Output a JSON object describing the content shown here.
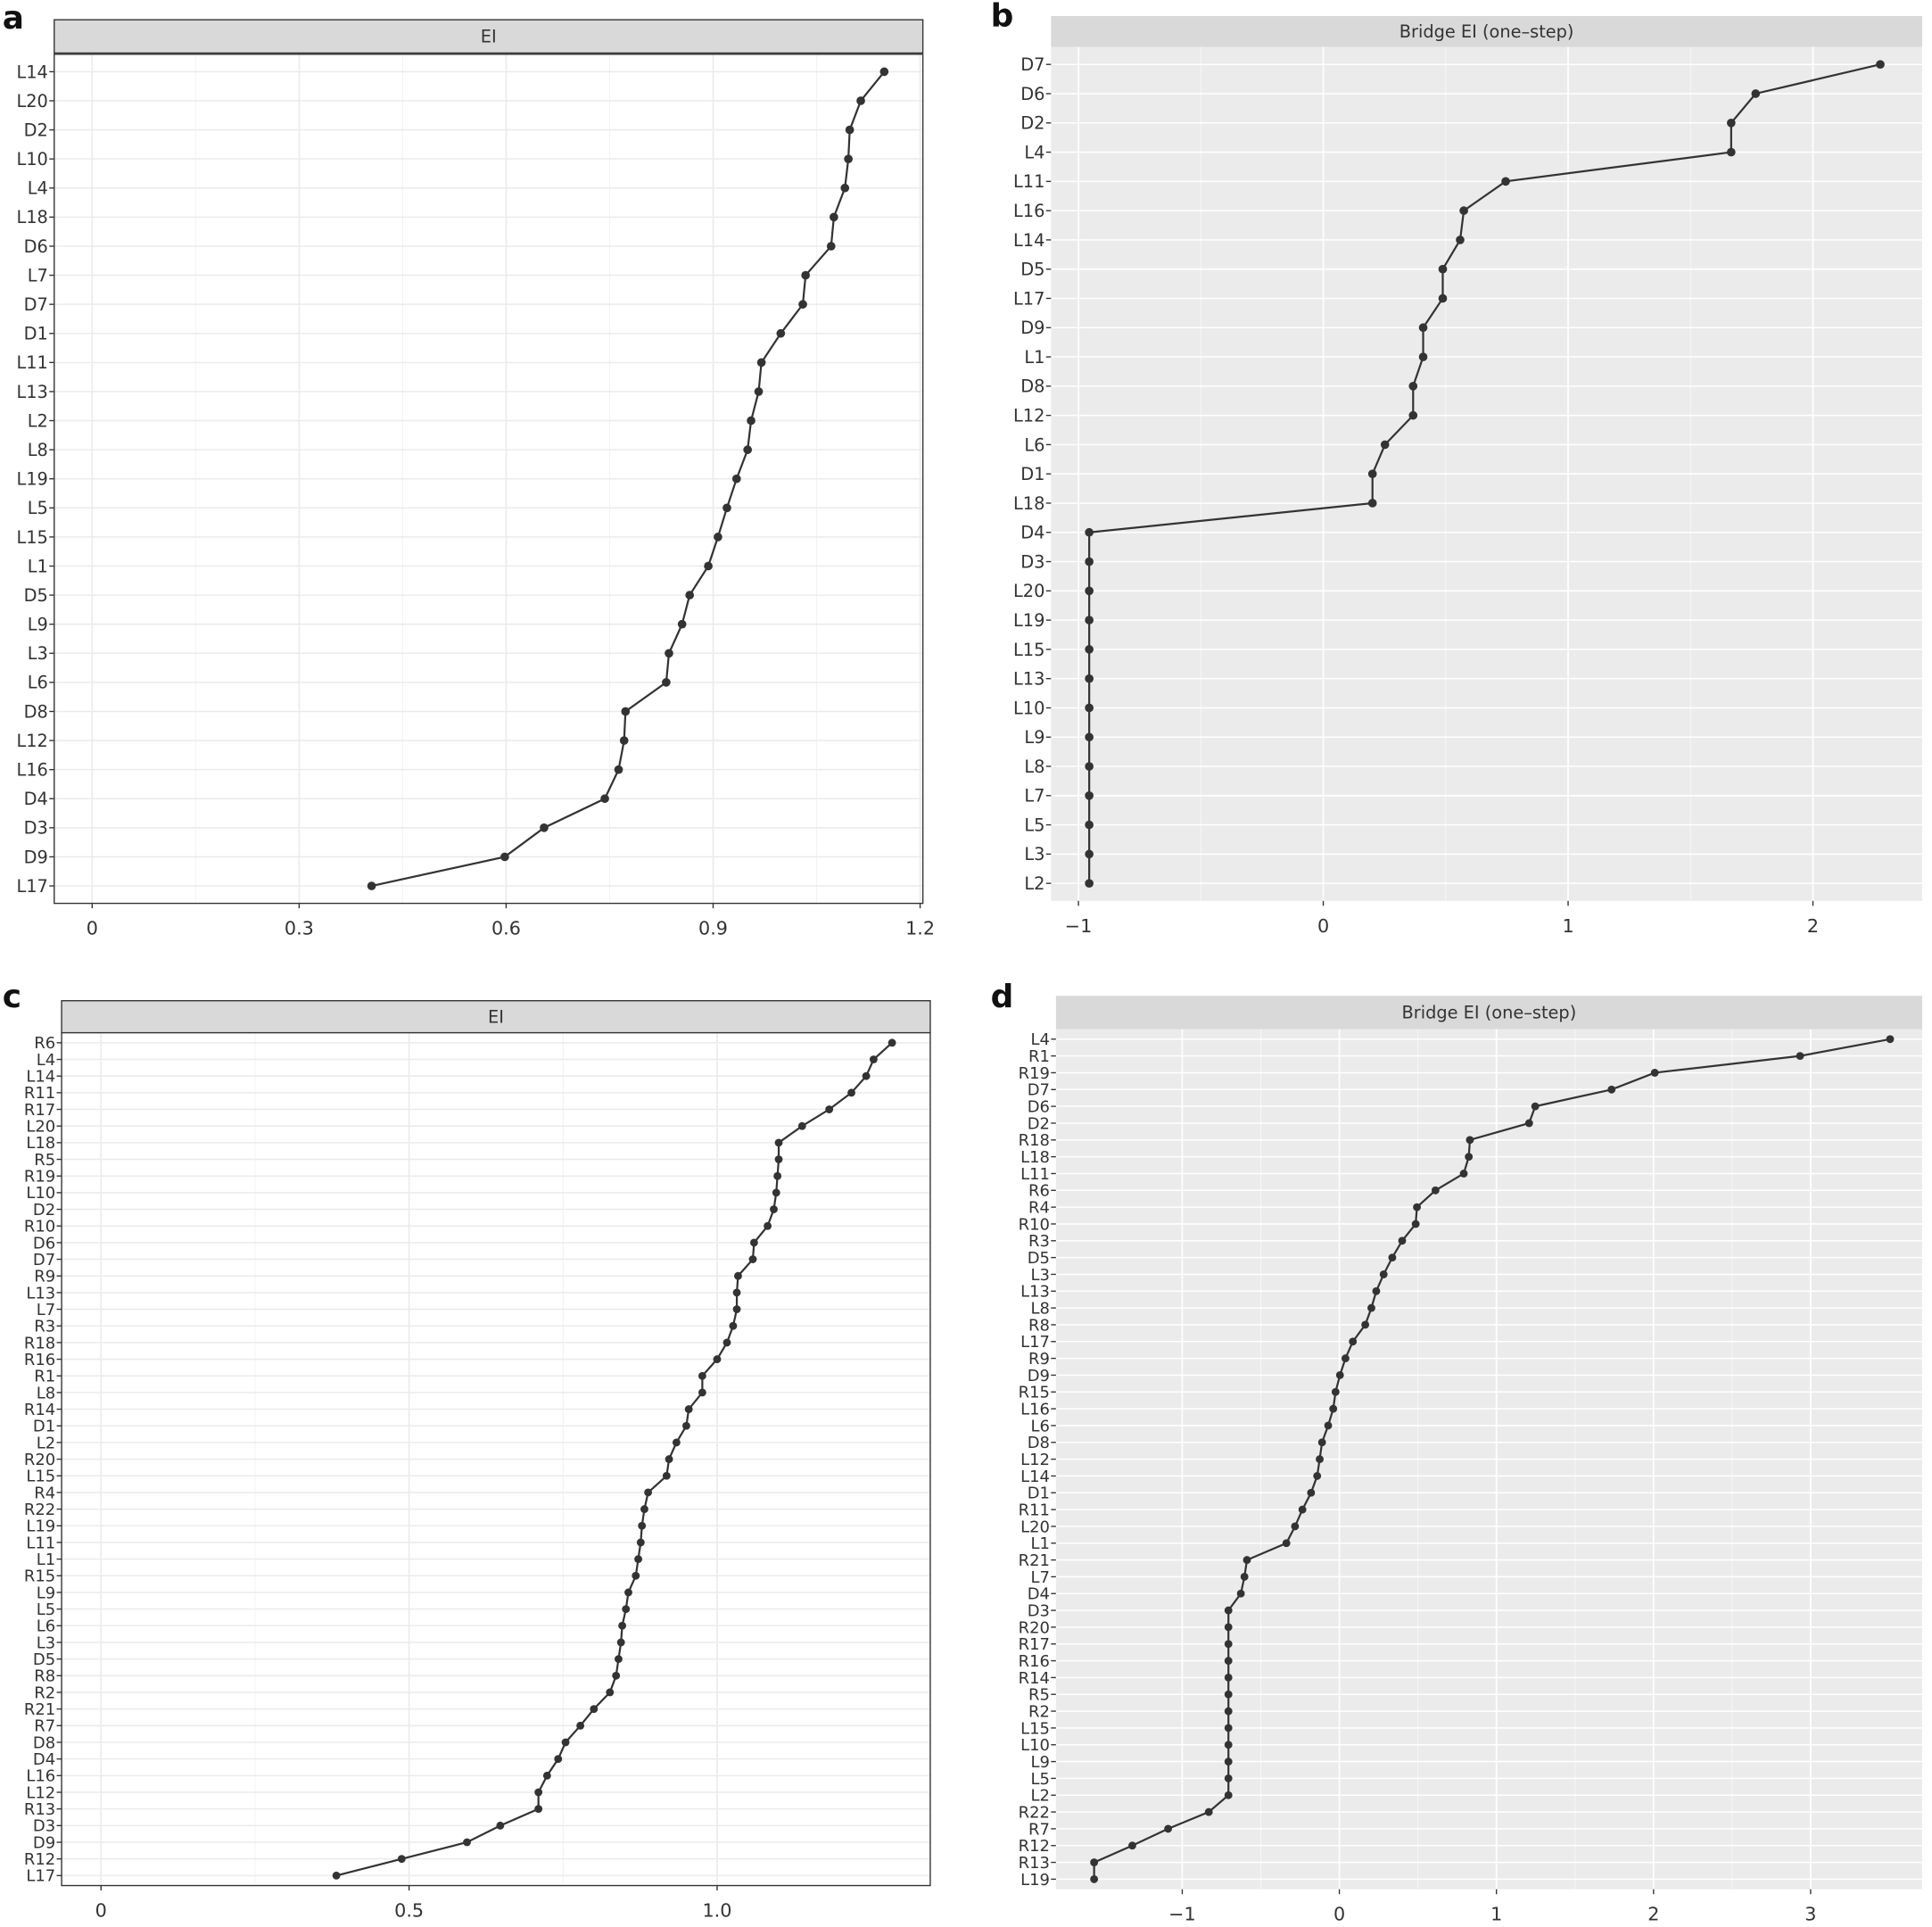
{
  "chart_data": [
    {
      "type": "line",
      "orientation": "horizontal",
      "panel_label": "a",
      "title": "EI",
      "categories": [
        "L14",
        "L20",
        "D2",
        "L10",
        "L4",
        "L18",
        "D6",
        "L7",
        "D7",
        "D1",
        "L11",
        "L13",
        "L2",
        "L8",
        "L19",
        "L5",
        "L15",
        "L1",
        "D5",
        "L9",
        "L3",
        "L6",
        "D8",
        "L12",
        "L16",
        "D4",
        "D3",
        "D9",
        "L17"
      ],
      "values": [
        1.148,
        1.114,
        1.098,
        1.096,
        1.091,
        1.075,
        1.071,
        1.034,
        1.03,
        0.998,
        0.97,
        0.966,
        0.955,
        0.95,
        0.934,
        0.92,
        0.907,
        0.893,
        0.866,
        0.855,
        0.836,
        0.832,
        0.773,
        0.771,
        0.763,
        0.743,
        0.655,
        0.598,
        0.405
      ],
      "xlim": [
        -0.055,
        1.204
      ],
      "xticks": [
        0,
        0.3,
        0.6,
        0.9,
        1.2
      ],
      "color": "#333333",
      "grid": true,
      "panel_background": "#ffffff",
      "grid_color": "#ebebeb",
      "strip_color": "#d9d9d9",
      "border": true
    },
    {
      "type": "line",
      "orientation": "horizontal",
      "panel_label": "b",
      "title": "Bridge EI (one–step)",
      "categories": [
        "D7",
        "D6",
        "D2",
        "L4",
        "L11",
        "L16",
        "L14",
        "D5",
        "L17",
        "D9",
        "L1",
        "D8",
        "L12",
        "L6",
        "D1",
        "L18",
        "D4",
        "D3",
        "L20",
        "L19",
        "L15",
        "L13",
        "L10",
        "L9",
        "L8",
        "L7",
        "L5",
        "L3",
        "L2"
      ],
      "values": [
        2.275,
        1.766,
        1.666,
        1.666,
        0.745,
        0.574,
        0.559,
        0.488,
        0.488,
        0.408,
        0.408,
        0.367,
        0.367,
        0.252,
        0.201,
        0.201,
        -0.956,
        -0.956,
        -0.956,
        -0.956,
        -0.956,
        -0.956,
        -0.956,
        -0.956,
        -0.956,
        -0.956,
        -0.956,
        -0.956,
        -0.956
      ],
      "xlim": [
        -1.112,
        2.446
      ],
      "xticks": [
        {
          "value": -1,
          "label": "−1"
        },
        0,
        1,
        2
      ],
      "color": "#333333",
      "grid": true,
      "panel_background": "#ebebeb",
      "grid_color": "#ffffff",
      "strip_color": "#d9d9d9",
      "border": false
    },
    {
      "type": "line",
      "orientation": "horizontal",
      "panel_label": "c",
      "title": "EI",
      "categories": [
        "R6",
        "L4",
        "L14",
        "R11",
        "R17",
        "L20",
        "L18",
        "R5",
        "R19",
        "L10",
        "D2",
        "R10",
        "D6",
        "D7",
        "R9",
        "L13",
        "L7",
        "R3",
        "R18",
        "R16",
        "R1",
        "L8",
        "R14",
        "D1",
        "L2",
        "R20",
        "L15",
        "R4",
        "R22",
        "L19",
        "L11",
        "L1",
        "R15",
        "L9",
        "L5",
        "L6",
        "L3",
        "D5",
        "R8",
        "R2",
        "R21",
        "R7",
        "D8",
        "D4",
        "L16",
        "L12",
        "R13",
        "D3",
        "D9",
        "R12",
        "L17"
      ],
      "values": [
        1.284,
        1.254,
        1.242,
        1.218,
        1.182,
        1.138,
        1.1,
        1.1,
        1.098,
        1.096,
        1.092,
        1.082,
        1.06,
        1.058,
        1.034,
        1.032,
        1.032,
        1.026,
        1.016,
        1.0,
        0.976,
        0.976,
        0.954,
        0.95,
        0.934,
        0.922,
        0.918,
        0.888,
        0.882,
        0.878,
        0.876,
        0.872,
        0.868,
        0.856,
        0.852,
        0.846,
        0.844,
        0.84,
        0.836,
        0.826,
        0.8,
        0.778,
        0.754,
        0.742,
        0.724,
        0.71,
        0.71,
        0.648,
        0.594,
        0.488,
        0.382
      ],
      "xlim": [
        -0.064,
        1.346
      ],
      "xticks": [
        0,
        0.5,
        {
          "value": 1,
          "label": "1.0"
        }
      ],
      "color": "#333333",
      "grid": true,
      "panel_background": "#ffffff",
      "grid_color": "#ebebeb",
      "strip_color": "#d9d9d9",
      "border": true
    },
    {
      "type": "line",
      "orientation": "horizontal",
      "panel_label": "d",
      "title": "Bridge EI (one–step)",
      "categories": [
        "L4",
        "R1",
        "R19",
        "D7",
        "D6",
        "D2",
        "R18",
        "L18",
        "L11",
        "R6",
        "R4",
        "R10",
        "R3",
        "D5",
        "L3",
        "L13",
        "L8",
        "R8",
        "L17",
        "R9",
        "D9",
        "R15",
        "L16",
        "L6",
        "D8",
        "L12",
        "L14",
        "D1",
        "R11",
        "L20",
        "L1",
        "R21",
        "L7",
        "D4",
        "D3",
        "R20",
        "R17",
        "R16",
        "R14",
        "R5",
        "R2",
        "L15",
        "L10",
        "L9",
        "L5",
        "L2",
        "R22",
        "R7",
        "R12",
        "R13",
        "L19"
      ],
      "values": [
        3.506,
        2.933,
        2.008,
        1.733,
        1.247,
        1.208,
        0.831,
        0.824,
        0.792,
        0.612,
        0.494,
        0.486,
        0.4,
        0.337,
        0.282,
        0.235,
        0.204,
        0.165,
        0.086,
        0.039,
        0.004,
        -0.024,
        -0.039,
        -0.071,
        -0.11,
        -0.125,
        -0.141,
        -0.18,
        -0.235,
        -0.282,
        -0.337,
        -0.588,
        -0.604,
        -0.627,
        -0.706,
        -0.706,
        -0.706,
        -0.706,
        -0.706,
        -0.706,
        -0.706,
        -0.706,
        -0.706,
        -0.706,
        -0.706,
        -0.706,
        -0.831,
        -1.09,
        -1.318,
        -1.561,
        -1.561
      ],
      "xlim": [
        -1.804,
        3.71
      ],
      "xticks": [
        {
          "value": -1,
          "label": "−1"
        },
        0,
        1,
        2,
        3
      ],
      "color": "#333333",
      "grid": true,
      "panel_background": "#ebebeb",
      "grid_color": "#ffffff",
      "strip_color": "#d9d9d9",
      "border": false
    }
  ]
}
